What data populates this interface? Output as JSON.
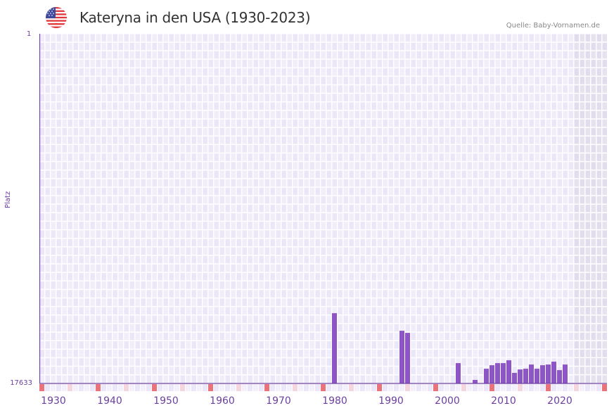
{
  "header": {
    "title": "Kateryna in den USA (1930-2023)",
    "source": "Quelle: Baby-Vornamen.de",
    "flag_icon": "us-flag-icon"
  },
  "colors": {
    "bar": "#8e55c7",
    "axis": "#6b3fa0",
    "grid_bg_a": "#f1edfb",
    "grid_bg_b": "#ebe6f8",
    "future_shade": "#e2ddee",
    "decade_marker": "#e8737a",
    "half_decade_marker": "#f5d5de"
  },
  "chart_data": {
    "type": "bar",
    "title": "Kateryna in den USA (1930-2023)",
    "xlabel": "",
    "ylabel": "Platz",
    "y_inverted": true,
    "ylim": [
      17633,
      1
    ],
    "yticks": [
      "1",
      "17633"
    ],
    "xlim": [
      1928,
      2028
    ],
    "xticks": [
      1930,
      1940,
      1950,
      1960,
      1970,
      1980,
      1990,
      2000,
      2010,
      2020
    ],
    "grid": true,
    "shaded_from_year": 2023,
    "x": [
      1980,
      1992,
      1993,
      2002,
      2005,
      2007,
      2008,
      2009,
      2010,
      2011,
      2012,
      2013,
      2014,
      2015,
      2016,
      2017,
      2018,
      2019,
      2020,
      2021
    ],
    "values": [
      14089,
      14976,
      15082,
      16607,
      17455,
      16891,
      16714,
      16607,
      16607,
      16465,
      17100,
      16927,
      16891,
      16678,
      16891,
      16714,
      16678,
      16536,
      16962,
      16678
    ]
  },
  "axis": {
    "ylabel": "Platz",
    "ytick_top": "1",
    "ytick_bottom": "17633",
    "xticks": [
      "1930",
      "1940",
      "1950",
      "1960",
      "1970",
      "1980",
      "1990",
      "2000",
      "2010",
      "2020"
    ]
  }
}
